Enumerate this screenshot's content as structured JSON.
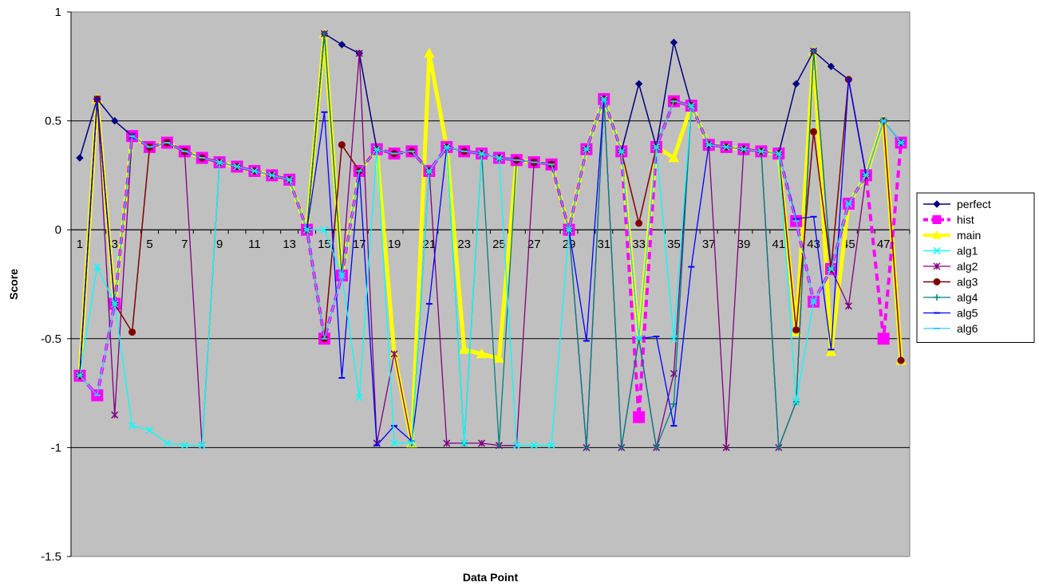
{
  "chart_data": {
    "type": "line",
    "title": "",
    "xlabel": "Data Point",
    "ylabel": "Score",
    "ylim": [
      -1.5,
      1
    ],
    "yticks": [
      "1",
      "0.5",
      "0",
      "-0.5",
      "-1",
      "-1.5"
    ],
    "ytick_values": [
      1,
      0.5,
      0,
      -0.5,
      -1,
      -1.5
    ],
    "xtick_labels": [
      "1",
      "3",
      "5",
      "7",
      "9",
      "11",
      "13",
      "15",
      "17",
      "19",
      "21",
      "23",
      "25",
      "27",
      "29",
      "31",
      "33",
      "35",
      "37",
      "39",
      "41",
      "43",
      "45",
      "47"
    ],
    "x": [
      1,
      2,
      3,
      4,
      5,
      6,
      7,
      8,
      9,
      10,
      11,
      12,
      13,
      14,
      15,
      16,
      17,
      18,
      19,
      20,
      21,
      22,
      23,
      24,
      25,
      26,
      27,
      28,
      29,
      30,
      31,
      32,
      33,
      34,
      35,
      36,
      37,
      38,
      39,
      40,
      41,
      42,
      43,
      44,
      45,
      46,
      47,
      48
    ],
    "grid": "horizontal",
    "background": "#c0c0c0",
    "legend_position": "right",
    "series": [
      {
        "name": "perfect",
        "color": "#000080",
        "marker": "diamond",
        "values": [
          0.33,
          0.6,
          0.5,
          0.43,
          0.38,
          0.4,
          0.36,
          0.33,
          0.31,
          0.29,
          0.27,
          0.25,
          0.23,
          0,
          0.9,
          0.85,
          0.81,
          0.37,
          0.35,
          0.36,
          0.27,
          0.38,
          0.36,
          0.35,
          0.33,
          0.32,
          0.31,
          0.3,
          0,
          0.37,
          0.6,
          0.36,
          0.67,
          0.38,
          0.86,
          0.57,
          0.39,
          0.38,
          0.37,
          0.36,
          0.35,
          0.67,
          0.82,
          0.75,
          0.69,
          0.25,
          0.5,
          0.4
        ]
      },
      {
        "name": "hist",
        "color": "#ff00ff",
        "marker": "square",
        "values": [
          -0.67,
          -0.76,
          -0.34,
          0.43,
          0.38,
          0.4,
          0.36,
          0.33,
          0.31,
          0.29,
          0.27,
          0.25,
          0.23,
          0,
          -0.5,
          -0.21,
          0.27,
          0.37,
          0.35,
          0.36,
          0.27,
          0.38,
          0.36,
          0.35,
          0.33,
          0.32,
          0.31,
          0.3,
          0,
          0.37,
          0.6,
          0.36,
          -0.86,
          0.38,
          0.59,
          0.57,
          0.39,
          0.38,
          0.37,
          0.36,
          0.35,
          0.04,
          -0.33,
          -0.18,
          0.12,
          0.25,
          -0.5,
          0.4
        ]
      },
      {
        "name": "main",
        "color": "#ffff00",
        "marker": "triangle",
        "values": [
          -0.67,
          0.6,
          -0.34,
          0.43,
          0.38,
          0.4,
          0.36,
          0.33,
          0.31,
          0.29,
          0.27,
          0.25,
          0.23,
          0,
          0.9,
          -0.21,
          0.27,
          0.37,
          -0.57,
          -0.98,
          0.81,
          0.38,
          -0.55,
          -0.57,
          -0.59,
          0.32,
          0.31,
          0.3,
          0,
          0.37,
          0.6,
          0.36,
          -0.5,
          0.38,
          0.33,
          0.57,
          0.39,
          0.38,
          0.37,
          0.36,
          0.35,
          -0.47,
          0.82,
          -0.56,
          0.12,
          0.25,
          0.5,
          -0.6
        ]
      },
      {
        "name": "alg1",
        "color": "#00ffff",
        "marker": "x",
        "values": [
          -0.67,
          -0.17,
          -0.34,
          -0.9,
          -0.92,
          -0.98,
          -0.99,
          -0.99,
          0.31,
          0.29,
          0.27,
          0.25,
          0.23,
          0,
          0,
          -0.21,
          -0.77,
          0.37,
          -0.98,
          -0.98,
          0.27,
          0.38,
          -0.98,
          0.35,
          0.33,
          -0.99,
          -0.99,
          -0.99,
          0,
          0.37,
          0.6,
          0.36,
          -0.5,
          0.38,
          -0.5,
          0.57,
          0.39,
          0.38,
          0.37,
          0.36,
          0.35,
          -0.79,
          -0.33,
          -0.18,
          0.12,
          0.25,
          0.5,
          0.4
        ]
      },
      {
        "name": "alg2",
        "color": "#800080",
        "marker": "star",
        "values": [
          -0.67,
          0.6,
          -0.85,
          0.43,
          0.38,
          0.4,
          0.36,
          -0.99,
          0.31,
          0.29,
          0.27,
          0.25,
          0.23,
          0,
          0.9,
          -0.21,
          0.81,
          -0.98,
          -0.57,
          -0.98,
          0.27,
          -0.98,
          -0.98,
          -0.98,
          -0.99,
          -0.99,
          0.31,
          0.3,
          0,
          -1,
          0.6,
          -1,
          -0.5,
          -1,
          -0.66,
          0.57,
          0.39,
          -1,
          0.37,
          0.36,
          -1,
          -0.79,
          0.82,
          -0.18,
          -0.35,
          0.25,
          0.5,
          0.4
        ]
      },
      {
        "name": "alg3",
        "color": "#800000",
        "marker": "circle",
        "values": [
          -0.67,
          0.6,
          -0.34,
          -0.47,
          0.38,
          0.4,
          0.36,
          0.33,
          0.31,
          0.29,
          0.27,
          0.25,
          0.23,
          0,
          -0.5,
          0.39,
          0.27,
          0.37,
          0.35,
          0.36,
          0.27,
          0.38,
          0.36,
          0.35,
          0.33,
          0.32,
          0.31,
          0.3,
          0,
          0.37,
          0.6,
          0.36,
          0.03,
          0.38,
          0.59,
          0.57,
          0.39,
          0.38,
          0.37,
          0.36,
          0.35,
          -0.46,
          0.45,
          -0.18,
          0.69,
          0.25,
          0.5,
          -0.6
        ]
      },
      {
        "name": "alg4",
        "color": "#008080",
        "marker": "plus",
        "values": [
          -0.67,
          0.6,
          -0.34,
          0.43,
          0.38,
          0.4,
          0.36,
          0.33,
          0.31,
          0.29,
          0.27,
          0.25,
          0.23,
          0,
          0.9,
          -0.21,
          0.27,
          0.37,
          0.35,
          0.36,
          0.27,
          0.38,
          -0.98,
          0.35,
          -0.99,
          0.32,
          0.31,
          0.3,
          0,
          -1,
          0.6,
          -1,
          -0.5,
          -1,
          -0.8,
          0.57,
          0.39,
          0.38,
          0.37,
          0.36,
          -1,
          -0.79,
          0.82,
          -0.18,
          0.12,
          0.25,
          0.5,
          0.4
        ]
      },
      {
        "name": "alg5",
        "color": "#0000ff",
        "marker": "dash",
        "values": [
          -0.67,
          0.6,
          -0.34,
          0.43,
          0.38,
          0.4,
          0.36,
          0.33,
          0.31,
          0.29,
          0.27,
          0.25,
          0.23,
          0,
          0.54,
          -0.68,
          0.27,
          -0.99,
          -0.9,
          -0.97,
          -0.34,
          0.38,
          0.36,
          0.35,
          0.33,
          0.32,
          0.31,
          0.3,
          0,
          -0.51,
          0.6,
          0.36,
          -0.5,
          -0.49,
          -0.9,
          -0.17,
          0.39,
          0.38,
          0.37,
          0.36,
          0.35,
          0.05,
          0.06,
          -0.55,
          0.69,
          0.25,
          0.5,
          0.4
        ]
      },
      {
        "name": "alg6",
        "color": "#33ccff",
        "marker": "dash",
        "values": [
          -0.67,
          -0.76,
          -0.34,
          0.43,
          0.38,
          0.4,
          0.36,
          0.33,
          0.31,
          0.29,
          0.27,
          0.25,
          0.23,
          0,
          -0.5,
          -0.21,
          0.27,
          0.37,
          0.35,
          0.36,
          0.27,
          0.38,
          0.36,
          0.35,
          0.33,
          0.32,
          0.31,
          0.3,
          0,
          0.37,
          0.6,
          0.36,
          -0.5,
          0.38,
          0.59,
          0.57,
          0.39,
          0.38,
          0.37,
          0.36,
          0.35,
          0.04,
          -0.33,
          -0.18,
          0.12,
          0.25,
          0.5,
          0.4
        ]
      }
    ]
  }
}
